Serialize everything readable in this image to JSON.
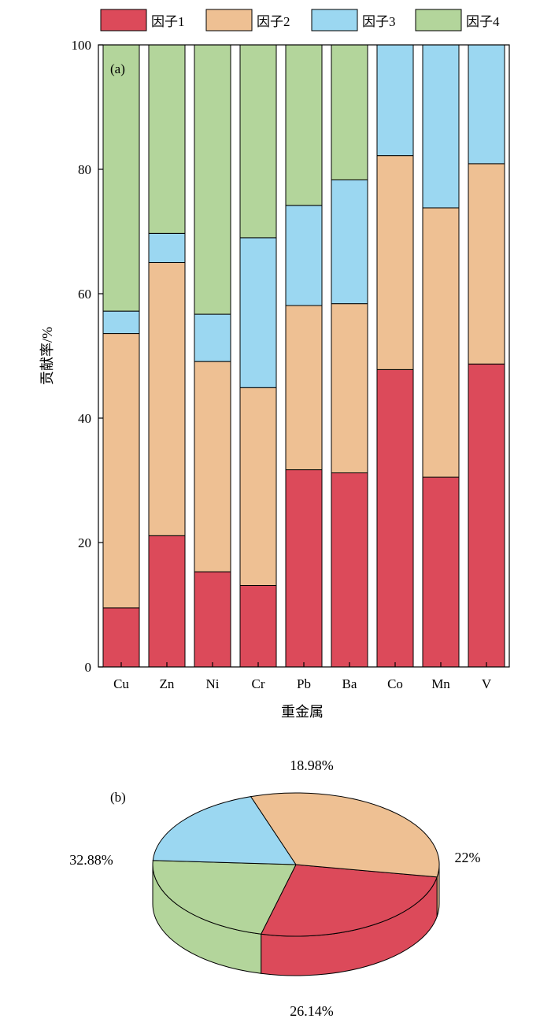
{
  "chart_data": [
    {
      "panel_label": "(a)",
      "type": "bar",
      "stacked": true,
      "categories": [
        "Cu",
        "Zn",
        "Ni",
        "Cr",
        "Pb",
        "Ba",
        "Co",
        "Mn",
        "V"
      ],
      "series": [
        {
          "name": "因子1",
          "color": "#dc4a5a",
          "values": [
            9.5,
            21.1,
            15.3,
            13.1,
            31.7,
            31.2,
            47.8,
            30.5,
            48.7
          ]
        },
        {
          "name": "因子2",
          "color": "#eec093",
          "values": [
            44.1,
            43.9,
            33.8,
            31.8,
            26.4,
            27.2,
            34.4,
            43.3,
            32.2
          ]
        },
        {
          "name": "因子3",
          "color": "#9bd7f1",
          "values": [
            3.6,
            4.7,
            7.6,
            24.1,
            16.1,
            19.9,
            17.8,
            26.2,
            19.1
          ]
        },
        {
          "name": "因子4",
          "color": "#b3d59b",
          "values": [
            42.8,
            30.3,
            43.3,
            31.0,
            25.8,
            21.7,
            0,
            0,
            0
          ]
        }
      ],
      "xlabel": "重金属",
      "ylabel": "贡献率/%",
      "ylim": [
        0,
        100
      ],
      "yticks": [
        0,
        20,
        40,
        60,
        80,
        100
      ],
      "legend": "top"
    },
    {
      "panel_label": "(b)",
      "type": "pie",
      "style": "3d",
      "slices": [
        {
          "name": "因子1",
          "value": 26.14,
          "label": "26.14%",
          "color": "#dc4a5a"
        },
        {
          "name": "因子2",
          "value": 32.88,
          "label": "32.88%",
          "color": "#eec093"
        },
        {
          "name": "因子3",
          "value": 18.98,
          "label": "18.98%",
          "color": "#9bd7f1"
        },
        {
          "name": "因子4",
          "value": 22,
          "label": "22%",
          "color": "#b3d59b"
        }
      ]
    }
  ]
}
